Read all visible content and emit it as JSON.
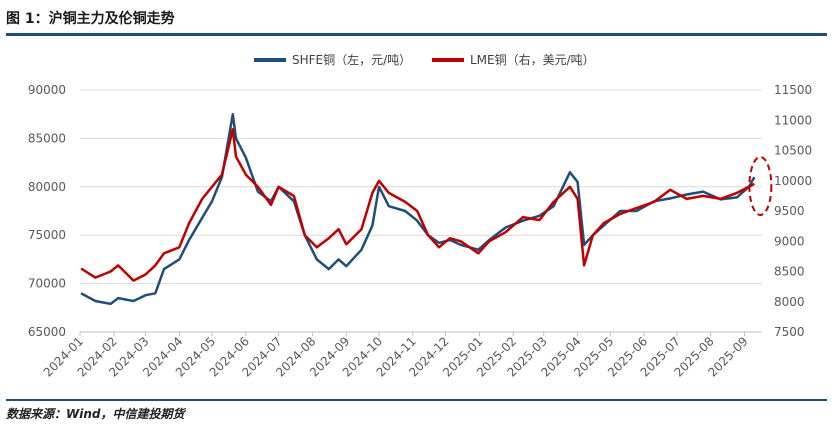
{
  "figure": {
    "title": "图 1：沪铜主力及伦铜走势",
    "source": "数据来源：Wind，中信建投期货"
  },
  "colors": {
    "shfe": "#1f4e79",
    "lme": "#c00000",
    "grid": "#d9d9d9",
    "rule": "#1f4e79",
    "highlight": "#c00000"
  },
  "chart_data": {
    "type": "line",
    "legend_position": "top-center",
    "grid": "horizontal",
    "title": "",
    "x_tick_labels": [
      "2024-01",
      "2024-02",
      "2024-03",
      "2024-04",
      "2024-05",
      "2024-06",
      "2024-07",
      "2024-08",
      "2024-09",
      "2024-10",
      "2024-11",
      "2024-12",
      "2025-01",
      "2025-02",
      "2025-03",
      "2025-04",
      "2025-05",
      "2025-06",
      "2025-07",
      "2025-08",
      "2025-09"
    ],
    "y_left": {
      "ylim": [
        65000,
        90000
      ],
      "ticks": [
        65000,
        70000,
        75000,
        80000,
        85000,
        90000
      ]
    },
    "y_right": {
      "ylim": [
        7500,
        11500
      ],
      "ticks": [
        7500,
        8000,
        8500,
        9000,
        9500,
        10000,
        10500,
        11000,
        11500
      ]
    },
    "annotation": "dashed ellipse highlighting latest values (2025-09)",
    "series": [
      {
        "name": "SHFE铜（左，元/吨）",
        "axis": "left",
        "points": [
          [
            "2024-01-02",
            69000
          ],
          [
            "2024-01-15",
            68200
          ],
          [
            "2024-01-29",
            67900
          ],
          [
            "2024-02-05",
            68500
          ],
          [
            "2024-02-19",
            68200
          ],
          [
            "2024-03-01",
            68800
          ],
          [
            "2024-03-10",
            69000
          ],
          [
            "2024-03-18",
            71500
          ],
          [
            "2024-04-01",
            72500
          ],
          [
            "2024-04-10",
            74500
          ],
          [
            "2024-04-22",
            76800
          ],
          [
            "2024-05-01",
            78500
          ],
          [
            "2024-05-10",
            81000
          ],
          [
            "2024-05-20",
            87500
          ],
          [
            "2024-05-23",
            85000
          ],
          [
            "2024-06-01",
            83000
          ],
          [
            "2024-06-12",
            79500
          ],
          [
            "2024-06-24",
            78500
          ],
          [
            "2024-07-01",
            80000
          ],
          [
            "2024-07-15",
            78500
          ],
          [
            "2024-07-25",
            75000
          ],
          [
            "2024-08-05",
            72500
          ],
          [
            "2024-08-16",
            71500
          ],
          [
            "2024-08-25",
            72500
          ],
          [
            "2024-09-01",
            71800
          ],
          [
            "2024-09-15",
            73500
          ],
          [
            "2024-09-25",
            76000
          ],
          [
            "2024-10-01",
            80000
          ],
          [
            "2024-10-10",
            78000
          ],
          [
            "2024-10-25",
            77500
          ],
          [
            "2024-11-05",
            76500
          ],
          [
            "2024-11-15",
            75000
          ],
          [
            "2024-11-25",
            74200
          ],
          [
            "2024-12-05",
            74500
          ],
          [
            "2024-12-15",
            74000
          ],
          [
            "2024-12-31",
            73500
          ],
          [
            "2025-01-10",
            74500
          ],
          [
            "2025-01-25",
            75800
          ],
          [
            "2025-02-10",
            76500
          ],
          [
            "2025-02-25",
            77000
          ],
          [
            "2025-03-10",
            78000
          ],
          [
            "2025-03-25",
            81500
          ],
          [
            "2025-04-01",
            80500
          ],
          [
            "2025-04-07",
            74000
          ],
          [
            "2025-04-15",
            75000
          ],
          [
            "2025-04-25",
            76000
          ],
          [
            "2025-05-10",
            77500
          ],
          [
            "2025-05-25",
            77500
          ],
          [
            "2025-06-10",
            78500
          ],
          [
            "2025-06-25",
            78800
          ],
          [
            "2025-07-10",
            79200
          ],
          [
            "2025-07-25",
            79500
          ],
          [
            "2025-08-10",
            78700
          ],
          [
            "2025-08-25",
            78900
          ],
          [
            "2025-09-05",
            80000
          ],
          [
            "2025-09-10",
            81000
          ]
        ]
      },
      {
        "name": "LME铜（右，美元/吨）",
        "axis": "right",
        "points": [
          [
            "2024-01-02",
            8550
          ],
          [
            "2024-01-15",
            8400
          ],
          [
            "2024-01-29",
            8500
          ],
          [
            "2024-02-05",
            8600
          ],
          [
            "2024-02-19",
            8350
          ],
          [
            "2024-03-01",
            8450
          ],
          [
            "2024-03-10",
            8600
          ],
          [
            "2024-03-18",
            8800
          ],
          [
            "2024-04-01",
            8900
          ],
          [
            "2024-04-10",
            9300
          ],
          [
            "2024-04-22",
            9700
          ],
          [
            "2024-05-01",
            9900
          ],
          [
            "2024-05-10",
            10100
          ],
          [
            "2024-05-20",
            10850
          ],
          [
            "2024-05-23",
            10400
          ],
          [
            "2024-06-01",
            10100
          ],
          [
            "2024-06-12",
            9900
          ],
          [
            "2024-06-24",
            9600
          ],
          [
            "2024-07-01",
            9900
          ],
          [
            "2024-07-15",
            9750
          ],
          [
            "2024-07-25",
            9100
          ],
          [
            "2024-08-05",
            8900
          ],
          [
            "2024-08-16",
            9050
          ],
          [
            "2024-08-25",
            9200
          ],
          [
            "2024-09-01",
            8950
          ],
          [
            "2024-09-15",
            9200
          ],
          [
            "2024-09-25",
            9800
          ],
          [
            "2024-10-01",
            10000
          ],
          [
            "2024-10-10",
            9800
          ],
          [
            "2024-10-25",
            9650
          ],
          [
            "2024-11-05",
            9500
          ],
          [
            "2024-11-15",
            9100
          ],
          [
            "2024-11-25",
            8900
          ],
          [
            "2024-12-05",
            9050
          ],
          [
            "2024-12-15",
            9000
          ],
          [
            "2024-12-31",
            8800
          ],
          [
            "2025-01-10",
            9000
          ],
          [
            "2025-01-25",
            9150
          ],
          [
            "2025-02-10",
            9400
          ],
          [
            "2025-02-25",
            9350
          ],
          [
            "2025-03-10",
            9650
          ],
          [
            "2025-03-25",
            9900
          ],
          [
            "2025-04-01",
            9700
          ],
          [
            "2025-04-07",
            8600
          ],
          [
            "2025-04-15",
            9100
          ],
          [
            "2025-04-25",
            9300
          ],
          [
            "2025-05-10",
            9450
          ],
          [
            "2025-05-25",
            9550
          ],
          [
            "2025-06-10",
            9650
          ],
          [
            "2025-06-25",
            9850
          ],
          [
            "2025-07-10",
            9700
          ],
          [
            "2025-07-25",
            9750
          ],
          [
            "2025-08-10",
            9700
          ],
          [
            "2025-08-25",
            9800
          ],
          [
            "2025-09-05",
            9900
          ],
          [
            "2025-09-10",
            9950
          ]
        ]
      }
    ]
  }
}
